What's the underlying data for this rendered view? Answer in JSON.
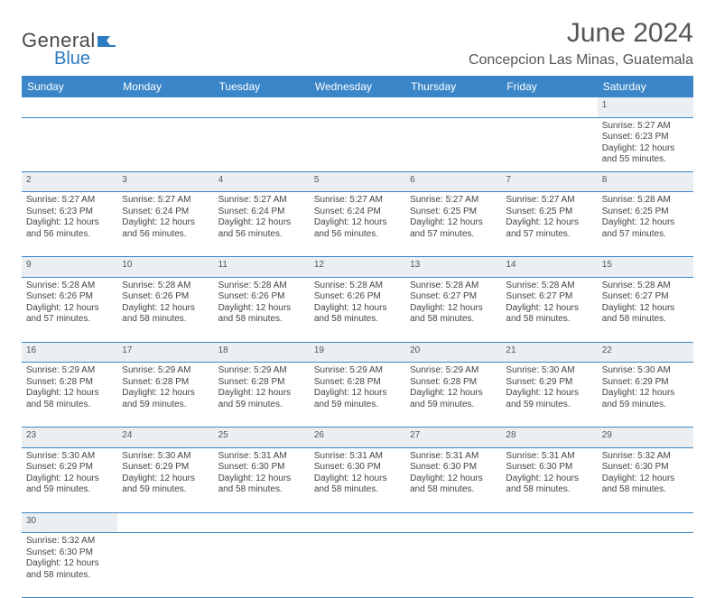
{
  "logo": {
    "text1": "General",
    "text2": "Blue"
  },
  "title": "June 2024",
  "location": "Concepcion Las Minas, Guatemala",
  "colors": {
    "header_bg": "#3a86c8",
    "header_text": "#ffffff",
    "daynum_bg": "#eceff1",
    "border": "#3a86c8",
    "logo_blue": "#2b7bbf",
    "text": "#444"
  },
  "weekdays": [
    "Sunday",
    "Monday",
    "Tuesday",
    "Wednesday",
    "Thursday",
    "Friday",
    "Saturday"
  ],
  "weeks": [
    [
      null,
      null,
      null,
      null,
      null,
      null,
      {
        "n": "1",
        "sr": "5:27 AM",
        "ss": "6:23 PM",
        "dl": "12 hours and 55 minutes."
      }
    ],
    [
      {
        "n": "2",
        "sr": "5:27 AM",
        "ss": "6:23 PM",
        "dl": "12 hours and 56 minutes."
      },
      {
        "n": "3",
        "sr": "5:27 AM",
        "ss": "6:24 PM",
        "dl": "12 hours and 56 minutes."
      },
      {
        "n": "4",
        "sr": "5:27 AM",
        "ss": "6:24 PM",
        "dl": "12 hours and 56 minutes."
      },
      {
        "n": "5",
        "sr": "5:27 AM",
        "ss": "6:24 PM",
        "dl": "12 hours and 56 minutes."
      },
      {
        "n": "6",
        "sr": "5:27 AM",
        "ss": "6:25 PM",
        "dl": "12 hours and 57 minutes."
      },
      {
        "n": "7",
        "sr": "5:27 AM",
        "ss": "6:25 PM",
        "dl": "12 hours and 57 minutes."
      },
      {
        "n": "8",
        "sr": "5:28 AM",
        "ss": "6:25 PM",
        "dl": "12 hours and 57 minutes."
      }
    ],
    [
      {
        "n": "9",
        "sr": "5:28 AM",
        "ss": "6:26 PM",
        "dl": "12 hours and 57 minutes."
      },
      {
        "n": "10",
        "sr": "5:28 AM",
        "ss": "6:26 PM",
        "dl": "12 hours and 58 minutes."
      },
      {
        "n": "11",
        "sr": "5:28 AM",
        "ss": "6:26 PM",
        "dl": "12 hours and 58 minutes."
      },
      {
        "n": "12",
        "sr": "5:28 AM",
        "ss": "6:26 PM",
        "dl": "12 hours and 58 minutes."
      },
      {
        "n": "13",
        "sr": "5:28 AM",
        "ss": "6:27 PM",
        "dl": "12 hours and 58 minutes."
      },
      {
        "n": "14",
        "sr": "5:28 AM",
        "ss": "6:27 PM",
        "dl": "12 hours and 58 minutes."
      },
      {
        "n": "15",
        "sr": "5:28 AM",
        "ss": "6:27 PM",
        "dl": "12 hours and 58 minutes."
      }
    ],
    [
      {
        "n": "16",
        "sr": "5:29 AM",
        "ss": "6:28 PM",
        "dl": "12 hours and 58 minutes."
      },
      {
        "n": "17",
        "sr": "5:29 AM",
        "ss": "6:28 PM",
        "dl": "12 hours and 59 minutes."
      },
      {
        "n": "18",
        "sr": "5:29 AM",
        "ss": "6:28 PM",
        "dl": "12 hours and 59 minutes."
      },
      {
        "n": "19",
        "sr": "5:29 AM",
        "ss": "6:28 PM",
        "dl": "12 hours and 59 minutes."
      },
      {
        "n": "20",
        "sr": "5:29 AM",
        "ss": "6:28 PM",
        "dl": "12 hours and 59 minutes."
      },
      {
        "n": "21",
        "sr": "5:30 AM",
        "ss": "6:29 PM",
        "dl": "12 hours and 59 minutes."
      },
      {
        "n": "22",
        "sr": "5:30 AM",
        "ss": "6:29 PM",
        "dl": "12 hours and 59 minutes."
      }
    ],
    [
      {
        "n": "23",
        "sr": "5:30 AM",
        "ss": "6:29 PM",
        "dl": "12 hours and 59 minutes."
      },
      {
        "n": "24",
        "sr": "5:30 AM",
        "ss": "6:29 PM",
        "dl": "12 hours and 59 minutes."
      },
      {
        "n": "25",
        "sr": "5:31 AM",
        "ss": "6:30 PM",
        "dl": "12 hours and 58 minutes."
      },
      {
        "n": "26",
        "sr": "5:31 AM",
        "ss": "6:30 PM",
        "dl": "12 hours and 58 minutes."
      },
      {
        "n": "27",
        "sr": "5:31 AM",
        "ss": "6:30 PM",
        "dl": "12 hours and 58 minutes."
      },
      {
        "n": "28",
        "sr": "5:31 AM",
        "ss": "6:30 PM",
        "dl": "12 hours and 58 minutes."
      },
      {
        "n": "29",
        "sr": "5:32 AM",
        "ss": "6:30 PM",
        "dl": "12 hours and 58 minutes."
      }
    ],
    [
      {
        "n": "30",
        "sr": "5:32 AM",
        "ss": "6:30 PM",
        "dl": "12 hours and 58 minutes."
      },
      null,
      null,
      null,
      null,
      null,
      null
    ]
  ],
  "labels": {
    "sunrise": "Sunrise:",
    "sunset": "Sunset:",
    "daylight": "Daylight:"
  }
}
